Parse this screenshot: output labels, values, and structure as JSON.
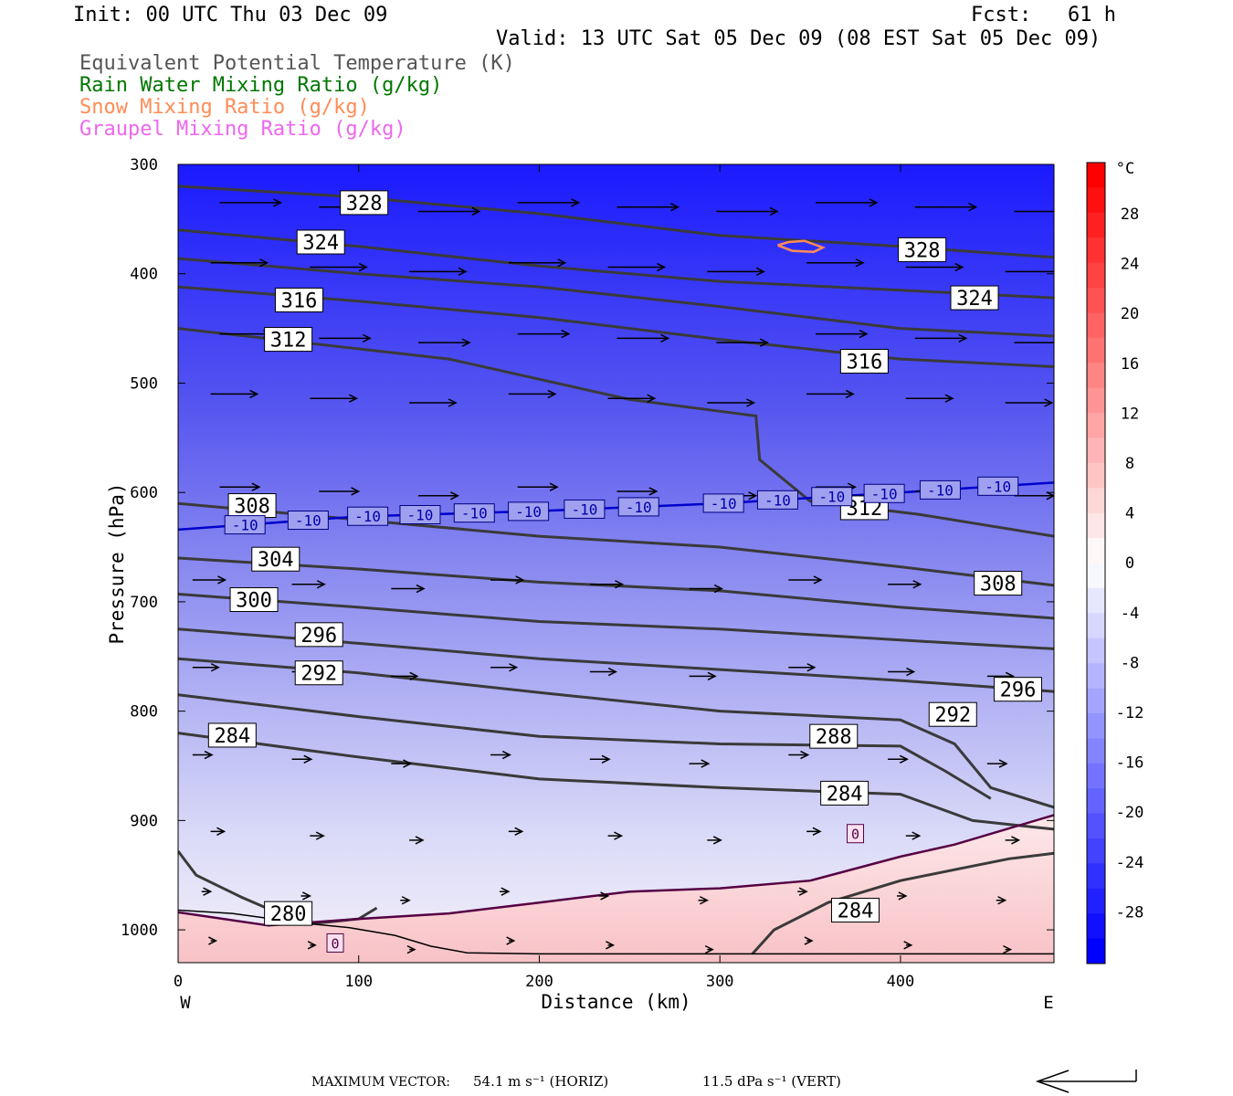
{
  "header": {
    "init": "Init: 00 UTC Thu 03 Dec 09",
    "fcst": "Fcst:   61 h",
    "valid": "Valid: 13 UTC Sat 05 Dec 09 (08 EST Sat 05 Dec 09)"
  },
  "legend": [
    {
      "label": "Equivalent Potential Temperature (K)",
      "color": "#555555"
    },
    {
      "label": "Rain Water Mixing Ratio (g/kg)",
      "color": "#007700"
    },
    {
      "label": "Snow Mixing Ratio (g/kg)",
      "color": "#ff8c55"
    },
    {
      "label": "Graupel Mixing Ratio (g/kg)",
      "color": "#ee66ee"
    }
  ],
  "chart_data": {
    "type": "cross-section",
    "xlabel": "Distance (km)",
    "ylabel": "Pressure (hPa)",
    "xlim": [
      0,
      485
    ],
    "ylim": [
      1030,
      300
    ],
    "x_ticks": [
      "0",
      "100",
      "200",
      "300",
      "400"
    ],
    "y_ticks": [
      "300",
      "400",
      "500",
      "600",
      "700",
      "800",
      "900",
      "1000"
    ],
    "x_left_label": "W",
    "x_right_label": "E",
    "colorbar": {
      "unit": "°C",
      "labels": [
        "28",
        "24",
        "20",
        "16",
        "12",
        "8",
        "4",
        "0",
        "-4",
        "-8",
        "-12",
        "-16",
        "-20",
        "-24",
        "-28"
      ]
    },
    "theta_e_contours": [
      {
        "label": "328",
        "points": [
          [
            0,
            320
          ],
          [
            100,
            330
          ],
          [
            200,
            345
          ],
          [
            300,
            365
          ],
          [
            400,
            375
          ],
          [
            485,
            385
          ]
        ]
      },
      {
        "label": "324",
        "points": [
          [
            0,
            360
          ],
          [
            100,
            375
          ],
          [
            200,
            393
          ],
          [
            300,
            407
          ],
          [
            400,
            415
          ],
          [
            485,
            422
          ]
        ]
      },
      {
        "label": "316",
        "points": [
          [
            0,
            386
          ],
          [
            100,
            400
          ],
          [
            200,
            412
          ],
          [
            300,
            430
          ],
          [
            400,
            450
          ],
          [
            485,
            457
          ]
        ]
      },
      {
        "label": "312",
        "points": [
          [
            0,
            412
          ],
          [
            100,
            425
          ],
          [
            200,
            440
          ],
          [
            300,
            460
          ],
          [
            400,
            478
          ],
          [
            485,
            485
          ]
        ]
      },
      {
        "label": "308",
        "points": [
          [
            0,
            450
          ],
          [
            150,
            478
          ],
          [
            250,
            515
          ],
          [
            320,
            530
          ],
          [
            322,
            570
          ],
          [
            350,
            608
          ],
          [
            410,
            620
          ],
          [
            485,
            640
          ]
        ]
      },
      {
        "label": "304",
        "points": [
          [
            0,
            610
          ],
          [
            100,
            625
          ],
          [
            200,
            640
          ],
          [
            300,
            650
          ],
          [
            400,
            668
          ],
          [
            485,
            685
          ]
        ]
      },
      {
        "label": "300",
        "points": [
          [
            0,
            660
          ],
          [
            100,
            670
          ],
          [
            200,
            682
          ],
          [
            300,
            690
          ],
          [
            400,
            705
          ],
          [
            485,
            715
          ]
        ]
      },
      {
        "label": "296",
        "points": [
          [
            0,
            693
          ],
          [
            100,
            705
          ],
          [
            200,
            718
          ],
          [
            300,
            725
          ],
          [
            400,
            735
          ],
          [
            485,
            743
          ]
        ]
      },
      {
        "label": "292",
        "points": [
          [
            0,
            725
          ],
          [
            100,
            738
          ],
          [
            200,
            752
          ],
          [
            300,
            762
          ],
          [
            400,
            772
          ],
          [
            485,
            782
          ]
        ]
      },
      {
        "label": "288",
        "points": [
          [
            0,
            752
          ],
          [
            100,
            765
          ],
          [
            200,
            783
          ],
          [
            300,
            800
          ],
          [
            400,
            808
          ],
          [
            430,
            830
          ],
          [
            450,
            870
          ],
          [
            485,
            888
          ]
        ]
      },
      {
        "label": "284",
        "points": [
          [
            0,
            785
          ],
          [
            100,
            805
          ],
          [
            200,
            823
          ],
          [
            300,
            830
          ],
          [
            400,
            832
          ],
          [
            425,
            855
          ],
          [
            450,
            880
          ]
        ]
      },
      {
        "label": "284",
        "points": [
          [
            0,
            820
          ],
          [
            100,
            842
          ],
          [
            200,
            862
          ],
          [
            300,
            870
          ],
          [
            400,
            876
          ],
          [
            440,
            900
          ],
          [
            485,
            908
          ]
        ]
      },
      {
        "label": "284",
        "points": [
          [
            318,
            1022
          ],
          [
            330,
            1000
          ],
          [
            360,
            975
          ],
          [
            400,
            955
          ],
          [
            430,
            945
          ],
          [
            460,
            935
          ],
          [
            485,
            930
          ]
        ]
      },
      {
        "label": "280",
        "points": [
          [
            0,
            928
          ],
          [
            10,
            950
          ],
          [
            35,
            970
          ],
          [
            70,
            995
          ],
          [
            100,
            990
          ],
          [
            110,
            980
          ]
        ]
      }
    ],
    "contour_labels": [
      {
        "text": "328",
        "x": 103,
        "y": 335
      },
      {
        "text": "324",
        "x": 79,
        "y": 371
      },
      {
        "text": "328",
        "x": 412,
        "y": 378
      },
      {
        "text": "316",
        "x": 67,
        "y": 424
      },
      {
        "text": "324",
        "x": 441,
        "y": 422
      },
      {
        "text": "312",
        "x": 61,
        "y": 460
      },
      {
        "text": "316",
        "x": 380,
        "y": 480
      },
      {
        "text": "308",
        "x": 41,
        "y": 612
      },
      {
        "text": "312",
        "x": 380,
        "y": 614
      },
      {
        "text": "304",
        "x": 54,
        "y": 661
      },
      {
        "text": "308",
        "x": 454,
        "y": 683
      },
      {
        "text": "300",
        "x": 42,
        "y": 698
      },
      {
        "text": "296",
        "x": 78,
        "y": 730
      },
      {
        "text": "292",
        "x": 78,
        "y": 765
      },
      {
        "text": "296",
        "x": 465,
        "y": 780
      },
      {
        "text": "292",
        "x": 429,
        "y": 803
      },
      {
        "text": "284",
        "x": 30,
        "y": 822
      },
      {
        "text": "288",
        "x": 363,
        "y": 823
      },
      {
        "text": "284",
        "x": 369,
        "y": 875
      },
      {
        "text": "284",
        "x": 375,
        "y": 982
      },
      {
        "text": "280",
        "x": 61,
        "y": 985
      }
    ],
    "isotherm_minus10": {
      "label": "-10",
      "points": [
        [
          0,
          634
        ],
        [
          50,
          628
        ],
        [
          100,
          622
        ],
        [
          200,
          617
        ],
        [
          300,
          610
        ],
        [
          400,
          600
        ],
        [
          485,
          591
        ]
      ],
      "label_x": [
        37,
        72,
        105,
        134,
        164,
        194,
        225,
        255,
        302,
        332,
        362,
        391,
        422,
        454
      ]
    },
    "freezing_line": {
      "label": "0",
      "points": [
        [
          0,
          984
        ],
        [
          50,
          996
        ],
        [
          100,
          990
        ],
        [
          150,
          985
        ],
        [
          200,
          975
        ],
        [
          250,
          965
        ],
        [
          300,
          962
        ],
        [
          350,
          955
        ],
        [
          400,
          933
        ],
        [
          430,
          922
        ],
        [
          485,
          895
        ]
      ],
      "label_positions": [
        [
          87,
          1012
        ],
        [
          375,
          912
        ]
      ]
    },
    "terrain_line": [
      [
        0,
        982
      ],
      [
        30,
        985
      ],
      [
        70,
        994
      ],
      [
        95,
        998
      ],
      [
        120,
        1005
      ],
      [
        140,
        1015
      ],
      [
        160,
        1021
      ],
      [
        200,
        1022
      ],
      [
        300,
        1022
      ],
      [
        485,
        1022
      ]
    ],
    "snow_contours": [
      [
        [
          332,
          374
        ],
        [
          340,
          379
        ],
        [
          352,
          380
        ],
        [
          357,
          376
        ],
        [
          347,
          370
        ],
        [
          338,
          371
        ],
        [
          332,
          374
        ]
      ]
    ],
    "max_vector": {
      "label": "MAXIMUM VECTOR:",
      "horizontal": "54.1 m s⁻¹ (HORIZ)",
      "vertical": "11.5 dPa s⁻¹ (VERT)"
    }
  }
}
